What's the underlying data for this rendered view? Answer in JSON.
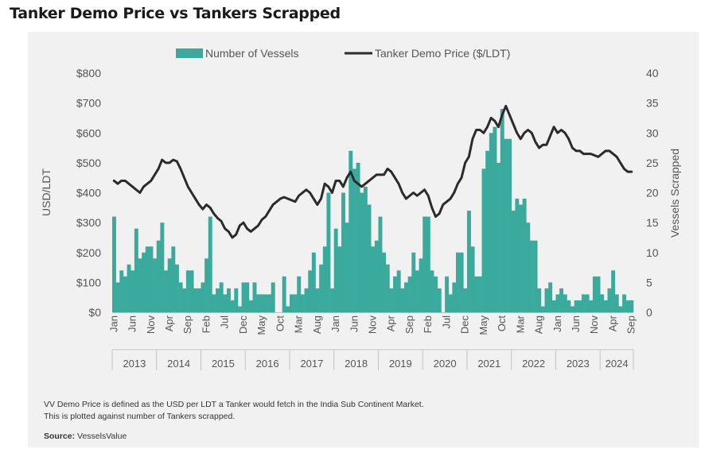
{
  "title": "Tanker Demo Price vs Tankers Scrapped",
  "colors": {
    "bars": "#3aaa9c",
    "line": "#2b2b2b",
    "panel": "#f1f1f1"
  },
  "notes": [
    "VV Demo Price is defined as the USD per LDT a Tanker would fetch in the India Sub Continent Market.",
    "This is plotted against number of Tankers scrapped."
  ],
  "source_label": "Source:",
  "source_value": "VesselsValue",
  "chart_data": {
    "type": "bar+line",
    "title": "Tanker Demo Price vs Tankers Scrapped",
    "ylabel": "USD/LDT",
    "y2label": "Vessels Scrapped",
    "ylim": [
      0,
      800
    ],
    "y2lim": [
      0,
      40
    ],
    "yticks": [
      "$0",
      "$100",
      "$200",
      "$300",
      "$400",
      "$500",
      "$600",
      "$700",
      "$800"
    ],
    "y2ticks": [
      "0",
      "5",
      "10",
      "15",
      "20",
      "25",
      "30",
      "35",
      "40"
    ],
    "legend": [
      "Number of Vessels",
      "Tanker Demo Price ($/LDT)"
    ],
    "x_start": "2013-01",
    "months": 141,
    "xticks": [
      {
        "m": 0,
        "label": "Jan"
      },
      {
        "m": 5,
        "label": "Jun"
      },
      {
        "m": 10,
        "label": "Nov"
      },
      {
        "m": 15,
        "label": "Apr"
      },
      {
        "m": 20,
        "label": "Sep"
      },
      {
        "m": 25,
        "label": "Feb"
      },
      {
        "m": 30,
        "label": "Jul"
      },
      {
        "m": 35,
        "label": "Dec"
      },
      {
        "m": 40,
        "label": "May"
      },
      {
        "m": 45,
        "label": "Oct"
      },
      {
        "m": 50,
        "label": "Mar"
      },
      {
        "m": 55,
        "label": "Aug"
      },
      {
        "m": 60,
        "label": "Jan"
      },
      {
        "m": 65,
        "label": "Jun"
      },
      {
        "m": 70,
        "label": "Nov"
      },
      {
        "m": 75,
        "label": "Apr"
      },
      {
        "m": 80,
        "label": "Sep"
      },
      {
        "m": 85,
        "label": "Feb"
      },
      {
        "m": 90,
        "label": "Jul"
      },
      {
        "m": 95,
        "label": "Dec"
      },
      {
        "m": 100,
        "label": "May"
      },
      {
        "m": 105,
        "label": "Oct"
      },
      {
        "m": 110,
        "label": "Mar"
      },
      {
        "m": 115,
        "label": "Aug"
      },
      {
        "m": 120,
        "label": "Jan"
      },
      {
        "m": 125,
        "label": "Jun"
      },
      {
        "m": 130,
        "label": "Nov"
      },
      {
        "m": 135,
        "label": "Apr"
      },
      {
        "m": 140,
        "label": "Sep"
      }
    ],
    "years": [
      "2013",
      "2014",
      "2015",
      "2016",
      "2017",
      "2018",
      "2019",
      "2020",
      "2021",
      "2022",
      "2023",
      "2024"
    ],
    "vessels": [
      16,
      5,
      7,
      6,
      8,
      7,
      14,
      9,
      10,
      11,
      11,
      9,
      12,
      15,
      7,
      9,
      11,
      8,
      5,
      4,
      7,
      7,
      4,
      4,
      5,
      9,
      16,
      3,
      4,
      5,
      3,
      4,
      2,
      4,
      1,
      5,
      5,
      2,
      5,
      3,
      3,
      3,
      3,
      5,
      0,
      0,
      6,
      1,
      3,
      3,
      6,
      3,
      4,
      7,
      10,
      4,
      8,
      11,
      20,
      4,
      14,
      11,
      20,
      15,
      27,
      24,
      25,
      20,
      21,
      18,
      11,
      12,
      16,
      10,
      8,
      4,
      6,
      7,
      4,
      5,
      6,
      10,
      7,
      9,
      16,
      16,
      7,
      6,
      4,
      0,
      6,
      3,
      5,
      10,
      10,
      4,
      17,
      11,
      6,
      6,
      24,
      27,
      30,
      31,
      25,
      34,
      29,
      29,
      17,
      19,
      18,
      19,
      15,
      12,
      12,
      4,
      1,
      4,
      5,
      2,
      3,
      4,
      3,
      2,
      1,
      2,
      2,
      3,
      3,
      2,
      6,
      6,
      3,
      2,
      4,
      7,
      3,
      1,
      3,
      2,
      2
    ],
    "price": [
      440,
      430,
      440,
      440,
      430,
      420,
      410,
      400,
      420,
      430,
      440,
      460,
      480,
      510,
      500,
      500,
      510,
      505,
      480,
      450,
      420,
      400,
      380,
      360,
      345,
      360,
      350,
      330,
      315,
      305,
      280,
      270,
      250,
      260,
      290,
      300,
      280,
      270,
      280,
      290,
      310,
      320,
      340,
      360,
      370,
      380,
      385,
      380,
      375,
      370,
      390,
      400,
      410,
      400,
      380,
      360,
      380,
      430,
      420,
      400,
      440,
      440,
      420,
      450,
      470,
      440,
      430,
      420,
      430,
      440,
      450,
      460,
      460,
      460,
      480,
      470,
      450,
      430,
      400,
      380,
      390,
      400,
      390,
      400,
      410,
      390,
      350,
      320,
      330,
      360,
      370,
      380,
      400,
      430,
      450,
      500,
      520,
      580,
      610,
      610,
      600,
      620,
      650,
      640,
      620,
      660,
      690,
      660,
      630,
      600,
      580,
      600,
      610,
      600,
      570,
      550,
      560,
      560,
      590,
      620,
      600,
      610,
      600,
      580,
      550,
      540,
      540,
      530,
      530,
      530,
      525,
      520,
      530,
      540,
      540,
      530,
      520,
      500,
      480,
      470,
      470
    ]
  }
}
